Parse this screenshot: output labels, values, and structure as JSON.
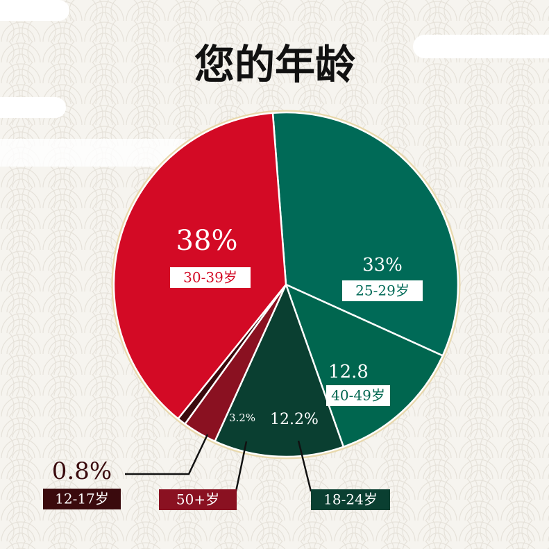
{
  "chart_data": {
    "type": "pie",
    "title": "您的年龄",
    "categories": [
      "25-29岁",
      "40-49岁",
      "18-24岁",
      "50+岁",
      "12-17岁",
      "30-39岁"
    ],
    "values": [
      33,
      12.8,
      12.2,
      3.2,
      0.8,
      38
    ],
    "value_labels": [
      "33%",
      "12.8",
      "12.2%",
      "3.2%",
      "0.8%",
      "38%"
    ],
    "colors": [
      "#006a57",
      "#00664f",
      "#0a3f31",
      "#8a1121",
      "#3a0a0d",
      "#d30a25"
    ]
  }
}
